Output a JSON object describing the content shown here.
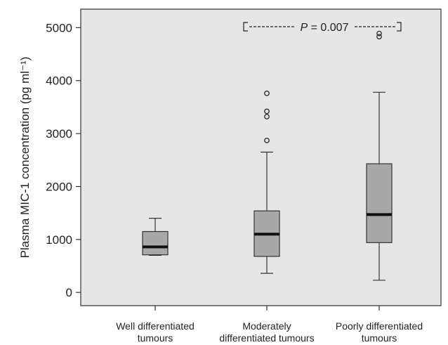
{
  "chart_data": {
    "type": "box",
    "ylabel": "Plasma MIC-1 concentration (pg ml⁻¹)",
    "ylim": [
      -250,
      5350
    ],
    "yticks": [
      0,
      1000,
      2000,
      3000,
      4000,
      5000
    ],
    "grid": false,
    "categories": [
      [
        "Well differentiated",
        "tumours"
      ],
      [
        "Moderately",
        "differentiated tumours"
      ],
      [
        "Poorly differentiated",
        "tumours"
      ]
    ],
    "boxes": [
      {
        "whisker_low": 700,
        "q1": 710,
        "median": 860,
        "q3": 1150,
        "whisker_high": 1400,
        "outliers": []
      },
      {
        "whisker_low": 360,
        "q1": 680,
        "median": 1100,
        "q3": 1540,
        "whisker_high": 2650,
        "outliers": [
          2870,
          3320,
          3420,
          3760
        ]
      },
      {
        "whisker_low": 230,
        "q1": 940,
        "median": 1470,
        "q3": 2430,
        "whisker_high": 3780,
        "outliers": [
          4830,
          4890
        ]
      }
    ],
    "box_color": "#a8a8a8",
    "plot_background": "#e6e6e6",
    "annotation": {
      "italic_label": "P",
      "value_text": " = 0.007",
      "between": [
        1,
        2
      ]
    }
  }
}
